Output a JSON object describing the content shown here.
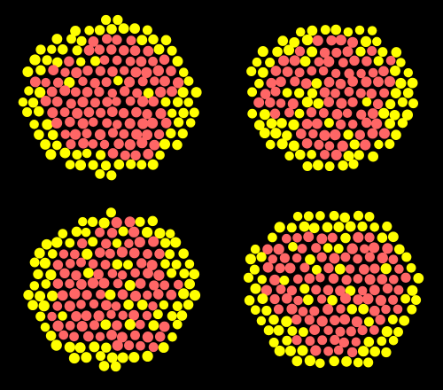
{
  "scene": {
    "background_color": "#000000",
    "pattern_colors": {
      "inner": "#ff6666",
      "outer": "#ffff00"
    },
    "panels": [
      {
        "name": "panel-top-left",
        "seed": 11
      },
      {
        "name": "panel-top-right",
        "seed": 23
      },
      {
        "name": "panel-bottom-left",
        "seed": 37
      },
      {
        "name": "panel-bottom-right",
        "seed": 53
      }
    ]
  }
}
